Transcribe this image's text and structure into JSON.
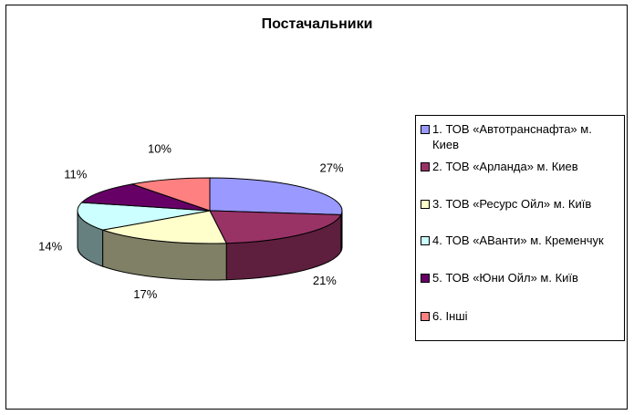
{
  "chart_data": {
    "type": "pie",
    "title": "Постачальники",
    "slices": [
      {
        "label": "1. ТОВ «Автотранснафта» м. Киев",
        "value": 27,
        "percent_label": "27%",
        "color": "#9999ff",
        "side_color": "#6d6db8"
      },
      {
        "label": "2. ТОВ «Арланда»  м. Киев",
        "value": 21,
        "percent_label": "21%",
        "color": "#993366",
        "side_color": "#5e1f3e"
      },
      {
        "label": "3.  ТОВ «Ресурс Ойл»  м. Київ",
        "value": 17,
        "percent_label": "17%",
        "color": "#ffffcc",
        "side_color": "#808066"
      },
      {
        "label": "4.  ТОВ «АВанти» м. Кременчук",
        "value": 14,
        "percent_label": "14%",
        "color": "#ccffff",
        "side_color": "#668080"
      },
      {
        "label": "5.    ТОВ «Юни Ойл» м. Київ",
        "value": 11,
        "percent_label": "11%",
        "color": "#660066",
        "side_color": "#3a003a"
      },
      {
        "label": "6.    Інші",
        "value": 10,
        "percent_label": "10%",
        "color": "#ff8080",
        "side_color": "#b35959"
      }
    ],
    "legend_position": "right",
    "style": "3d-pie"
  }
}
